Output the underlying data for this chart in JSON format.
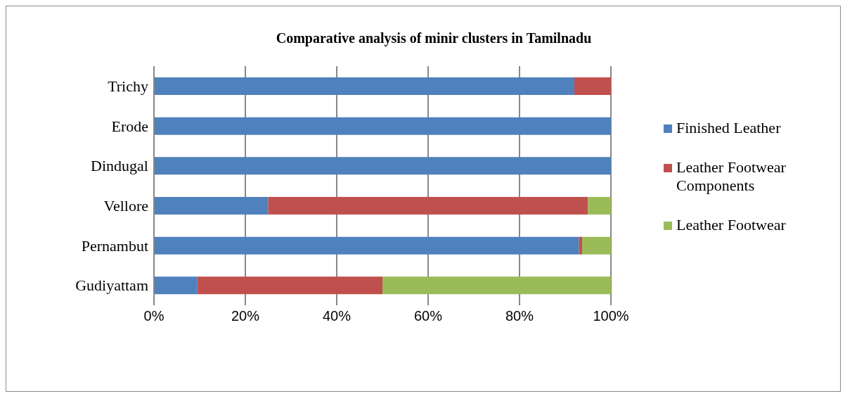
{
  "chart_data": {
    "type": "bar",
    "title": "Comparative analysis of minir clusters in Tamilnadu",
    "orientation": "horizontal",
    "stacked": true,
    "categories": [
      "Trichy",
      "Erode",
      "Dindugal",
      "Vellore",
      "Pernambut",
      "Gudiyattam"
    ],
    "series": [
      {
        "name": "Finished Leather",
        "color": "#4f81bd",
        "values": [
          92,
          100,
          100,
          25,
          93,
          9.5
        ]
      },
      {
        "name": "Leather Footwear Components",
        "color": "#c0504d",
        "values": [
          8,
          0,
          0,
          70,
          0.7,
          40.5
        ]
      },
      {
        "name": "Leather Footwear",
        "color": "#9bbb59",
        "values": [
          0,
          0,
          0,
          5,
          6.3,
          50
        ]
      }
    ],
    "xlim": [
      0,
      100
    ],
    "xticks": [
      {
        "value": 0,
        "label": "0%"
      },
      {
        "value": 20,
        "label": "20%"
      },
      {
        "value": 40,
        "label": "40%"
      },
      {
        "value": 60,
        "label": "60%"
      },
      {
        "value": 80,
        "label": "80%"
      },
      {
        "value": 100,
        "label": "100%"
      }
    ],
    "grid": "x",
    "legend": "right"
  }
}
